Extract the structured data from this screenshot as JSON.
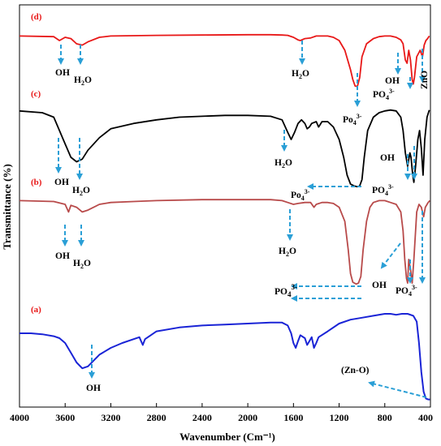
{
  "chart_data": {
    "type": "line",
    "title": "",
    "xlabel": "Wavenumber (Cm⁻¹)",
    "ylabel": "Transmittance (%)",
    "xlim": [
      4000,
      400
    ],
    "x_reversed": true,
    "x_ticks": [
      4000,
      3600,
      3200,
      2800,
      2400,
      2000,
      1600,
      1200,
      800,
      400
    ],
    "grid": false,
    "series": [
      {
        "name": "(d)",
        "color": "#e81818",
        "points": [
          [
            4000,
            0.92
          ],
          [
            3700,
            0.91
          ],
          [
            3650,
            0.85
          ],
          [
            3600,
            0.9
          ],
          [
            3550,
            0.88
          ],
          [
            3500,
            0.8
          ],
          [
            3450,
            0.78
          ],
          [
            3400,
            0.83
          ],
          [
            3300,
            0.9
          ],
          [
            3200,
            0.92
          ],
          [
            3000,
            0.925
          ],
          [
            2800,
            0.93
          ],
          [
            2400,
            0.935
          ],
          [
            2000,
            0.94
          ],
          [
            1800,
            0.94
          ],
          [
            1700,
            0.935
          ],
          [
            1650,
            0.93
          ],
          [
            1600,
            0.9
          ],
          [
            1560,
            0.86
          ],
          [
            1540,
            0.85
          ],
          [
            1500,
            0.88
          ],
          [
            1450,
            0.89
          ],
          [
            1400,
            0.92
          ],
          [
            1300,
            0.92
          ],
          [
            1250,
            0.9
          ],
          [
            1200,
            0.85
          ],
          [
            1150,
            0.7
          ],
          [
            1100,
            0.4
          ],
          [
            1080,
            0.25
          ],
          [
            1060,
            0.15
          ],
          [
            1040,
            0.14
          ],
          [
            1020,
            0.28
          ],
          [
            1000,
            0.6
          ],
          [
            960,
            0.8
          ],
          [
            900,
            0.88
          ],
          [
            850,
            0.91
          ],
          [
            800,
            0.92
          ],
          [
            750,
            0.92
          ],
          [
            700,
            0.9
          ],
          [
            660,
            0.86
          ],
          [
            640,
            0.8
          ],
          [
            620,
            0.55
          ],
          [
            605,
            0.5
          ],
          [
            590,
            0.7
          ],
          [
            575,
            0.55
          ],
          [
            560,
            0.25
          ],
          [
            550,
            0.18
          ],
          [
            540,
            0.28
          ],
          [
            520,
            0.6
          ],
          [
            505,
            0.65
          ],
          [
            490,
            0.7
          ],
          [
            470,
            0.6
          ],
          [
            455,
            0.78
          ],
          [
            440,
            0.85
          ],
          [
            425,
            0.88
          ],
          [
            410,
            0.92
          ]
        ]
      },
      {
        "name": "(c)",
        "color": "#000000",
        "points": [
          [
            4000,
            0.92
          ],
          [
            3800,
            0.9
          ],
          [
            3700,
            0.85
          ],
          [
            3650,
            0.7
          ],
          [
            3600,
            0.55
          ],
          [
            3550,
            0.4
          ],
          [
            3500,
            0.35
          ],
          [
            3450,
            0.38
          ],
          [
            3400,
            0.48
          ],
          [
            3300,
            0.62
          ],
          [
            3200,
            0.72
          ],
          [
            3000,
            0.78
          ],
          [
            2800,
            0.82
          ],
          [
            2600,
            0.85
          ],
          [
            2400,
            0.86
          ],
          [
            2200,
            0.87
          ],
          [
            2000,
            0.87
          ],
          [
            1800,
            0.86
          ],
          [
            1700,
            0.82
          ],
          [
            1650,
            0.68
          ],
          [
            1620,
            0.6
          ],
          [
            1590,
            0.68
          ],
          [
            1560,
            0.78
          ],
          [
            1530,
            0.82
          ],
          [
            1500,
            0.78
          ],
          [
            1480,
            0.72
          ],
          [
            1460,
            0.74
          ],
          [
            1440,
            0.78
          ],
          [
            1400,
            0.8
          ],
          [
            1380,
            0.74
          ],
          [
            1350,
            0.8
          ],
          [
            1300,
            0.8
          ],
          [
            1250,
            0.74
          ],
          [
            1200,
            0.6
          ],
          [
            1160,
            0.4
          ],
          [
            1130,
            0.2
          ],
          [
            1100,
            0.1
          ],
          [
            1070,
            0.08
          ],
          [
            1040,
            0.07
          ],
          [
            1020,
            0.08
          ],
          [
            1000,
            0.15
          ],
          [
            980,
            0.4
          ],
          [
            950,
            0.7
          ],
          [
            900,
            0.85
          ],
          [
            850,
            0.9
          ],
          [
            800,
            0.92
          ],
          [
            750,
            0.93
          ],
          [
            700,
            0.92
          ],
          [
            660,
            0.85
          ],
          [
            640,
            0.7
          ],
          [
            620,
            0.45
          ],
          [
            600,
            0.3
          ],
          [
            580,
            0.45
          ],
          [
            570,
            0.4
          ],
          [
            555,
            0.2
          ],
          [
            545,
            0.12
          ],
          [
            530,
            0.3
          ],
          [
            510,
            0.6
          ],
          [
            495,
            0.7
          ],
          [
            480,
            0.5
          ],
          [
            465,
            0.2
          ],
          [
            450,
            0.6
          ],
          [
            430,
            0.85
          ],
          [
            410,
            0.93
          ]
        ]
      },
      {
        "name": "(b)",
        "color": "#b84a4a",
        "points": [
          [
            4000,
            0.92
          ],
          [
            3700,
            0.91
          ],
          [
            3600,
            0.88
          ],
          [
            3570,
            0.8
          ],
          [
            3550,
            0.87
          ],
          [
            3500,
            0.85
          ],
          [
            3450,
            0.8
          ],
          [
            3400,
            0.82
          ],
          [
            3300,
            0.88
          ],
          [
            3200,
            0.9
          ],
          [
            3000,
            0.91
          ],
          [
            2800,
            0.92
          ],
          [
            2400,
            0.93
          ],
          [
            2000,
            0.93
          ],
          [
            1800,
            0.93
          ],
          [
            1700,
            0.92
          ],
          [
            1650,
            0.9
          ],
          [
            1600,
            0.88
          ],
          [
            1560,
            0.89
          ],
          [
            1500,
            0.9
          ],
          [
            1450,
            0.9
          ],
          [
            1420,
            0.85
          ],
          [
            1400,
            0.88
          ],
          [
            1350,
            0.9
          ],
          [
            1300,
            0.9
          ],
          [
            1250,
            0.89
          ],
          [
            1200,
            0.85
          ],
          [
            1150,
            0.7
          ],
          [
            1120,
            0.4
          ],
          [
            1100,
            0.15
          ],
          [
            1080,
            0.06
          ],
          [
            1050,
            0.04
          ],
          [
            1030,
            0.05
          ],
          [
            1010,
            0.12
          ],
          [
            990,
            0.4
          ],
          [
            960,
            0.7
          ],
          [
            930,
            0.85
          ],
          [
            900,
            0.9
          ],
          [
            850,
            0.92
          ],
          [
            800,
            0.92
          ],
          [
            750,
            0.9
          ],
          [
            700,
            0.88
          ],
          [
            660,
            0.8
          ],
          [
            640,
            0.6
          ],
          [
            625,
            0.3
          ],
          [
            610,
            0.1
          ],
          [
            600,
            0.05
          ],
          [
            590,
            0.3
          ],
          [
            575,
            0.2
          ],
          [
            560,
            0.05
          ],
          [
            545,
            0.3
          ],
          [
            520,
            0.8
          ],
          [
            500,
            0.88
          ],
          [
            480,
            0.85
          ],
          [
            460,
            0.75
          ],
          [
            445,
            0.85
          ],
          [
            420,
            0.9
          ],
          [
            405,
            0.92
          ]
        ]
      },
      {
        "name": "(a)",
        "color": "#1a24d6",
        "points": [
          [
            4000,
            0.7
          ],
          [
            3900,
            0.7
          ],
          [
            3800,
            0.69
          ],
          [
            3700,
            0.67
          ],
          [
            3650,
            0.65
          ],
          [
            3600,
            0.6
          ],
          [
            3550,
            0.5
          ],
          [
            3500,
            0.4
          ],
          [
            3450,
            0.34
          ],
          [
            3400,
            0.36
          ],
          [
            3350,
            0.42
          ],
          [
            3300,
            0.48
          ],
          [
            3200,
            0.55
          ],
          [
            3100,
            0.6
          ],
          [
            3000,
            0.64
          ],
          [
            2950,
            0.66
          ],
          [
            2920,
            0.58
          ],
          [
            2900,
            0.64
          ],
          [
            2850,
            0.68
          ],
          [
            2800,
            0.72
          ],
          [
            2600,
            0.76
          ],
          [
            2400,
            0.78
          ],
          [
            2200,
            0.79
          ],
          [
            2000,
            0.8
          ],
          [
            1800,
            0.81
          ],
          [
            1700,
            0.81
          ],
          [
            1650,
            0.78
          ],
          [
            1620,
            0.7
          ],
          [
            1600,
            0.6
          ],
          [
            1580,
            0.55
          ],
          [
            1560,
            0.62
          ],
          [
            1540,
            0.68
          ],
          [
            1500,
            0.65
          ],
          [
            1480,
            0.58
          ],
          [
            1460,
            0.62
          ],
          [
            1440,
            0.66
          ],
          [
            1420,
            0.55
          ],
          [
            1400,
            0.6
          ],
          [
            1380,
            0.66
          ],
          [
            1300,
            0.72
          ],
          [
            1200,
            0.8
          ],
          [
            1100,
            0.84
          ],
          [
            1000,
            0.86
          ],
          [
            900,
            0.88
          ],
          [
            800,
            0.9
          ],
          [
            750,
            0.9
          ],
          [
            700,
            0.89
          ],
          [
            650,
            0.9
          ],
          [
            600,
            0.9
          ],
          [
            550,
            0.88
          ],
          [
            520,
            0.82
          ],
          [
            500,
            0.6
          ],
          [
            480,
            0.3
          ],
          [
            460,
            0.1
          ],
          [
            440,
            0.03
          ],
          [
            420,
            0.02
          ],
          [
            405,
            0.02
          ]
        ]
      }
    ],
    "annotations": [
      {
        "series": "(d)",
        "labels": [
          "OH",
          "H2O",
          "H2O",
          "OH",
          "PO43-",
          "PO43-",
          "ZnO"
        ]
      },
      {
        "series": "(c)",
        "labels": [
          "OH",
          "H2O",
          "H2O",
          "OH",
          "PO43-",
          "Po43-"
        ]
      },
      {
        "series": "(b)",
        "labels": [
          "OH",
          "H2O",
          "H2O",
          "OH",
          "PO43-",
          "PO43-"
        ]
      },
      {
        "series": "(a)",
        "labels": [
          "OH",
          "(Zn-O)"
        ]
      }
    ]
  },
  "labels": {
    "d": "(d)",
    "c": "(c)",
    "b": "(b)",
    "a": "(a)",
    "oh": "OH",
    "h": "H",
    "two": "2",
    "o": "O",
    "po": "PO",
    "po_lower": "Po",
    "four": "4",
    "three_minus": "3-",
    "zno": "ZnO",
    "zn_o": "(Zn-O)"
  }
}
